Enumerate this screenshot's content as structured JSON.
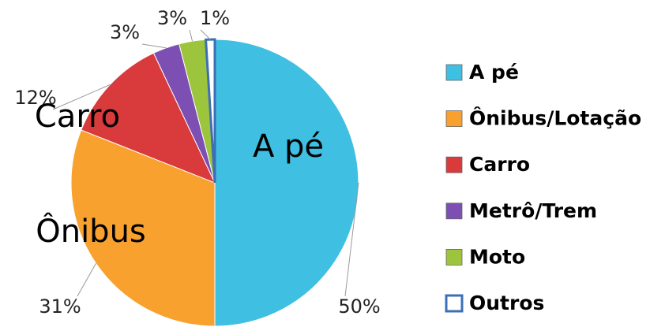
{
  "chart_data": {
    "type": "pie",
    "categories": [
      "A pé",
      "Ônibus/Lotação",
      "Carro",
      "Metrô/Trem",
      "Moto",
      "Outros"
    ],
    "values": [
      50,
      31,
      12,
      3,
      3,
      1
    ],
    "value_labels": [
      "50%",
      "31%",
      "12%",
      "3%",
      "3%",
      "1%"
    ],
    "slice_labels": [
      "A pé",
      "Ônibus",
      "Carro",
      null,
      null,
      null
    ],
    "colors": [
      "#3fbfe2",
      "#f8a12f",
      "#d93a3b",
      "#7d4fb2",
      "#9cc53d",
      "#ffffff"
    ],
    "legend": "right"
  }
}
